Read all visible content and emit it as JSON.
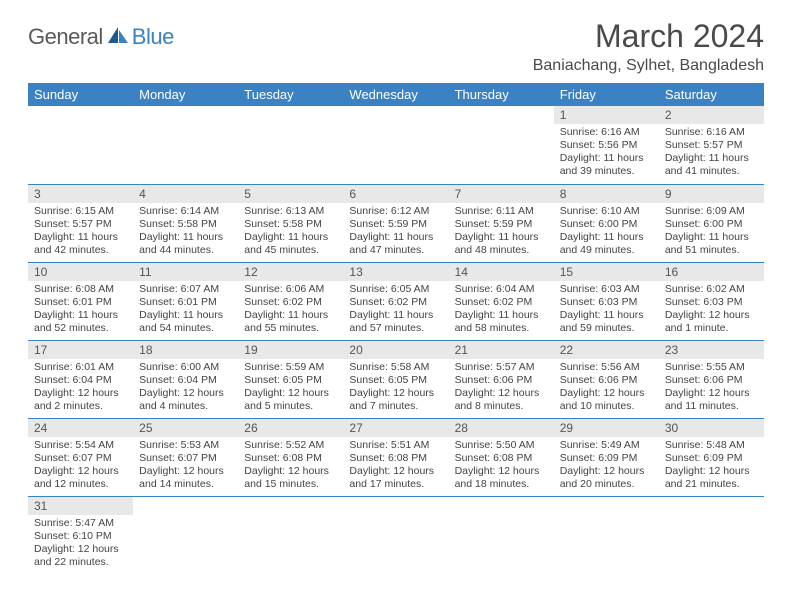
{
  "logo": {
    "general": "General",
    "blue": "Blue"
  },
  "title": "March 2024",
  "location": "Baniachang, Sylhet, Bangladesh",
  "colors": {
    "header_bg": "#3b82c4",
    "header_text": "#ffffff",
    "daynum_bg": "#e8e8e8",
    "text": "#444444",
    "border": "#3b82c4"
  },
  "weekdays": [
    "Sunday",
    "Monday",
    "Tuesday",
    "Wednesday",
    "Thursday",
    "Friday",
    "Saturday"
  ],
  "weeks": [
    [
      {
        "empty": true
      },
      {
        "empty": true
      },
      {
        "empty": true
      },
      {
        "empty": true
      },
      {
        "empty": true
      },
      {
        "num": "1",
        "sunrise": "Sunrise: 6:16 AM",
        "sunset": "Sunset: 5:56 PM",
        "daylight": "Daylight: 11 hours and 39 minutes."
      },
      {
        "num": "2",
        "sunrise": "Sunrise: 6:16 AM",
        "sunset": "Sunset: 5:57 PM",
        "daylight": "Daylight: 11 hours and 41 minutes."
      }
    ],
    [
      {
        "num": "3",
        "sunrise": "Sunrise: 6:15 AM",
        "sunset": "Sunset: 5:57 PM",
        "daylight": "Daylight: 11 hours and 42 minutes."
      },
      {
        "num": "4",
        "sunrise": "Sunrise: 6:14 AM",
        "sunset": "Sunset: 5:58 PM",
        "daylight": "Daylight: 11 hours and 44 minutes."
      },
      {
        "num": "5",
        "sunrise": "Sunrise: 6:13 AM",
        "sunset": "Sunset: 5:58 PM",
        "daylight": "Daylight: 11 hours and 45 minutes."
      },
      {
        "num": "6",
        "sunrise": "Sunrise: 6:12 AM",
        "sunset": "Sunset: 5:59 PM",
        "daylight": "Daylight: 11 hours and 47 minutes."
      },
      {
        "num": "7",
        "sunrise": "Sunrise: 6:11 AM",
        "sunset": "Sunset: 5:59 PM",
        "daylight": "Daylight: 11 hours and 48 minutes."
      },
      {
        "num": "8",
        "sunrise": "Sunrise: 6:10 AM",
        "sunset": "Sunset: 6:00 PM",
        "daylight": "Daylight: 11 hours and 49 minutes."
      },
      {
        "num": "9",
        "sunrise": "Sunrise: 6:09 AM",
        "sunset": "Sunset: 6:00 PM",
        "daylight": "Daylight: 11 hours and 51 minutes."
      }
    ],
    [
      {
        "num": "10",
        "sunrise": "Sunrise: 6:08 AM",
        "sunset": "Sunset: 6:01 PM",
        "daylight": "Daylight: 11 hours and 52 minutes."
      },
      {
        "num": "11",
        "sunrise": "Sunrise: 6:07 AM",
        "sunset": "Sunset: 6:01 PM",
        "daylight": "Daylight: 11 hours and 54 minutes."
      },
      {
        "num": "12",
        "sunrise": "Sunrise: 6:06 AM",
        "sunset": "Sunset: 6:02 PM",
        "daylight": "Daylight: 11 hours and 55 minutes."
      },
      {
        "num": "13",
        "sunrise": "Sunrise: 6:05 AM",
        "sunset": "Sunset: 6:02 PM",
        "daylight": "Daylight: 11 hours and 57 minutes."
      },
      {
        "num": "14",
        "sunrise": "Sunrise: 6:04 AM",
        "sunset": "Sunset: 6:02 PM",
        "daylight": "Daylight: 11 hours and 58 minutes."
      },
      {
        "num": "15",
        "sunrise": "Sunrise: 6:03 AM",
        "sunset": "Sunset: 6:03 PM",
        "daylight": "Daylight: 11 hours and 59 minutes."
      },
      {
        "num": "16",
        "sunrise": "Sunrise: 6:02 AM",
        "sunset": "Sunset: 6:03 PM",
        "daylight": "Daylight: 12 hours and 1 minute."
      }
    ],
    [
      {
        "num": "17",
        "sunrise": "Sunrise: 6:01 AM",
        "sunset": "Sunset: 6:04 PM",
        "daylight": "Daylight: 12 hours and 2 minutes."
      },
      {
        "num": "18",
        "sunrise": "Sunrise: 6:00 AM",
        "sunset": "Sunset: 6:04 PM",
        "daylight": "Daylight: 12 hours and 4 minutes."
      },
      {
        "num": "19",
        "sunrise": "Sunrise: 5:59 AM",
        "sunset": "Sunset: 6:05 PM",
        "daylight": "Daylight: 12 hours and 5 minutes."
      },
      {
        "num": "20",
        "sunrise": "Sunrise: 5:58 AM",
        "sunset": "Sunset: 6:05 PM",
        "daylight": "Daylight: 12 hours and 7 minutes."
      },
      {
        "num": "21",
        "sunrise": "Sunrise: 5:57 AM",
        "sunset": "Sunset: 6:06 PM",
        "daylight": "Daylight: 12 hours and 8 minutes."
      },
      {
        "num": "22",
        "sunrise": "Sunrise: 5:56 AM",
        "sunset": "Sunset: 6:06 PM",
        "daylight": "Daylight: 12 hours and 10 minutes."
      },
      {
        "num": "23",
        "sunrise": "Sunrise: 5:55 AM",
        "sunset": "Sunset: 6:06 PM",
        "daylight": "Daylight: 12 hours and 11 minutes."
      }
    ],
    [
      {
        "num": "24",
        "sunrise": "Sunrise: 5:54 AM",
        "sunset": "Sunset: 6:07 PM",
        "daylight": "Daylight: 12 hours and 12 minutes."
      },
      {
        "num": "25",
        "sunrise": "Sunrise: 5:53 AM",
        "sunset": "Sunset: 6:07 PM",
        "daylight": "Daylight: 12 hours and 14 minutes."
      },
      {
        "num": "26",
        "sunrise": "Sunrise: 5:52 AM",
        "sunset": "Sunset: 6:08 PM",
        "daylight": "Daylight: 12 hours and 15 minutes."
      },
      {
        "num": "27",
        "sunrise": "Sunrise: 5:51 AM",
        "sunset": "Sunset: 6:08 PM",
        "daylight": "Daylight: 12 hours and 17 minutes."
      },
      {
        "num": "28",
        "sunrise": "Sunrise: 5:50 AM",
        "sunset": "Sunset: 6:08 PM",
        "daylight": "Daylight: 12 hours and 18 minutes."
      },
      {
        "num": "29",
        "sunrise": "Sunrise: 5:49 AM",
        "sunset": "Sunset: 6:09 PM",
        "daylight": "Daylight: 12 hours and 20 minutes."
      },
      {
        "num": "30",
        "sunrise": "Sunrise: 5:48 AM",
        "sunset": "Sunset: 6:09 PM",
        "daylight": "Daylight: 12 hours and 21 minutes."
      }
    ],
    [
      {
        "num": "31",
        "sunrise": "Sunrise: 5:47 AM",
        "sunset": "Sunset: 6:10 PM",
        "daylight": "Daylight: 12 hours and 22 minutes."
      },
      {
        "empty": true
      },
      {
        "empty": true
      },
      {
        "empty": true
      },
      {
        "empty": true
      },
      {
        "empty": true
      },
      {
        "empty": true
      }
    ]
  ]
}
